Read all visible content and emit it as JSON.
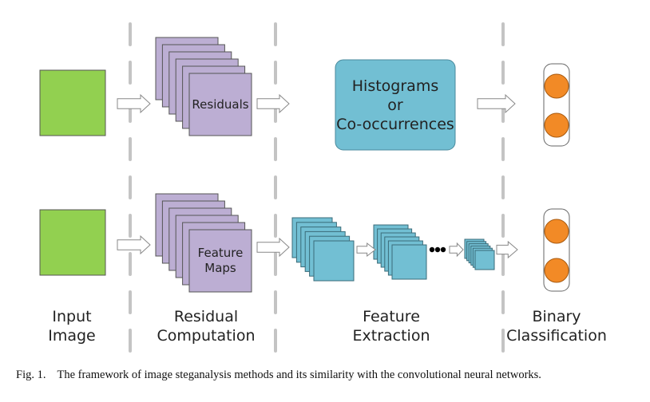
{
  "colors": {
    "input": "#92d050",
    "residual": "#bcaed3",
    "feature": "#72bfd3",
    "histogram": "#72bfd3",
    "output": "#f28a26",
    "divider": "#c4c4c4"
  },
  "top_row": {
    "stack_label": "Residuals",
    "histogram_lines": [
      "Histograms",
      "or",
      "Co-occurrences"
    ]
  },
  "bottom_row": {
    "stack_label_lines": [
      "Feature",
      "Maps"
    ]
  },
  "columns": [
    {
      "lines": [
        "Input",
        "Image"
      ]
    },
    {
      "lines": [
        "Residual",
        "Computation"
      ]
    },
    {
      "lines": [
        "Feature",
        "Extraction"
      ]
    },
    {
      "lines": [
        "Binary",
        "Classification"
      ]
    }
  ],
  "caption": {
    "label": "Fig. 1.",
    "text": "The framework of image steganalysis methods and its similarity with the convolutional neural networks."
  }
}
